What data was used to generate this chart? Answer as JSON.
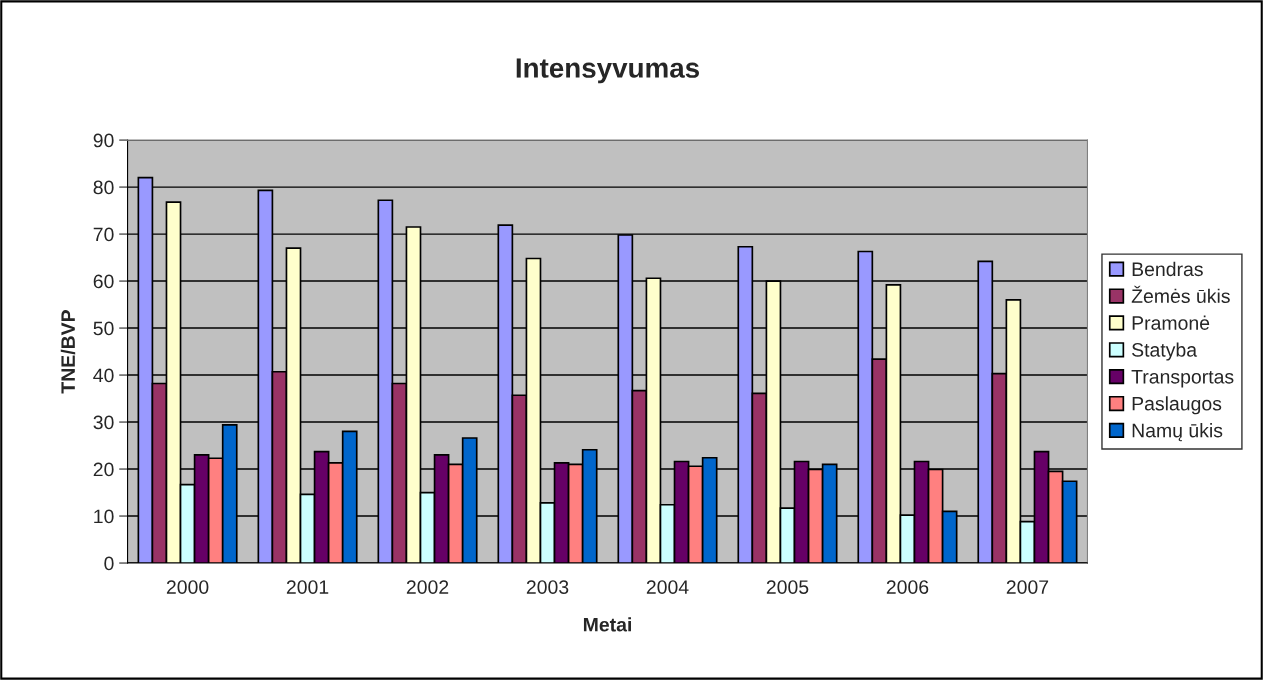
{
  "chart_data": {
    "type": "bar",
    "title": "Intensyvumas",
    "xlabel": "Metai",
    "ylabel": "TNE/BVP",
    "categories": [
      "2000",
      "2001",
      "2002",
      "2003",
      "2004",
      "2005",
      "2006",
      "2007"
    ],
    "series": [
      {
        "name": "Bendras",
        "color": "#9999ff",
        "values": [
          82,
          79.3,
          77.2,
          71.9,
          69.8,
          67.3,
          66.3,
          64.2
        ]
      },
      {
        "name": "Žemės ūkis",
        "color": "#993366",
        "values": [
          38.2,
          40.7,
          38.2,
          35.7,
          36.7,
          36.1,
          43.4,
          40.3
        ]
      },
      {
        "name": "Pramonė",
        "color": "#ffffcc",
        "values": [
          76.8,
          67,
          71.5,
          64.8,
          60.6,
          60,
          59.2,
          56
        ]
      },
      {
        "name": "Statyba",
        "color": "#ccffff",
        "values": [
          16.7,
          14.6,
          15,
          12.8,
          12.4,
          11.7,
          10.2,
          8.8
        ]
      },
      {
        "name": "Transportas",
        "color": "#660066",
        "values": [
          23,
          23.7,
          23,
          21.3,
          21.6,
          21.6,
          21.6,
          23.7
        ]
      },
      {
        "name": "Paslaugos",
        "color": "#ff8080",
        "values": [
          22.3,
          21.3,
          21,
          21,
          20.6,
          19.9,
          19.9,
          19.5
        ]
      },
      {
        "name": "Namų ūkis",
        "color": "#0066cc",
        "values": [
          29.4,
          28,
          26.6,
          24.1,
          22.4,
          21,
          11,
          17.4
        ]
      }
    ],
    "ylim": [
      0,
      90
    ],
    "yticks": [
      0,
      10,
      20,
      30,
      40,
      50,
      60,
      70,
      80,
      90
    ],
    "grid": "y",
    "legend": "right"
  }
}
